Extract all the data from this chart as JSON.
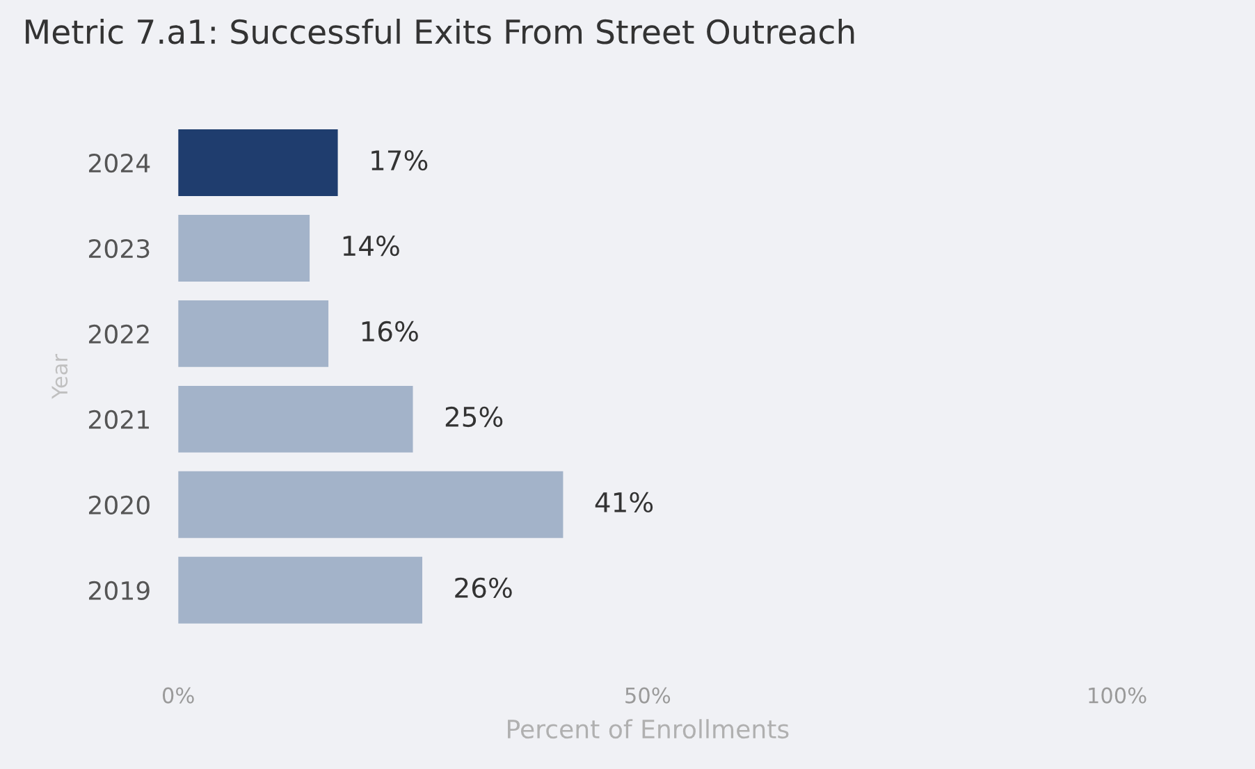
{
  "chart_data": {
    "type": "bar",
    "orientation": "horizontal",
    "title": "Metric 7.a1: Successful Exits From Street Outreach",
    "xlabel": "Percent of Enrollments",
    "ylabel": "Year",
    "categories": [
      "2024",
      "2023",
      "2022",
      "2021",
      "2020",
      "2019"
    ],
    "values": [
      17,
      14,
      16,
      25,
      41,
      26
    ],
    "colors": [
      "#1f3d6e",
      "#a3b3c9",
      "#a3b3c9",
      "#a3b3c9",
      "#a3b3c9",
      "#a3b3c9"
    ],
    "value_labels": [
      "17%",
      "14%",
      "16%",
      "25%",
      "41%",
      "26%"
    ],
    "xlim": [
      0,
      100
    ],
    "xticks": [
      {
        "value": 0,
        "label": "0%"
      },
      {
        "value": 50,
        "label": "50%"
      },
      {
        "value": 100,
        "label": "100%"
      }
    ],
    "grid": false,
    "legend": false
  }
}
